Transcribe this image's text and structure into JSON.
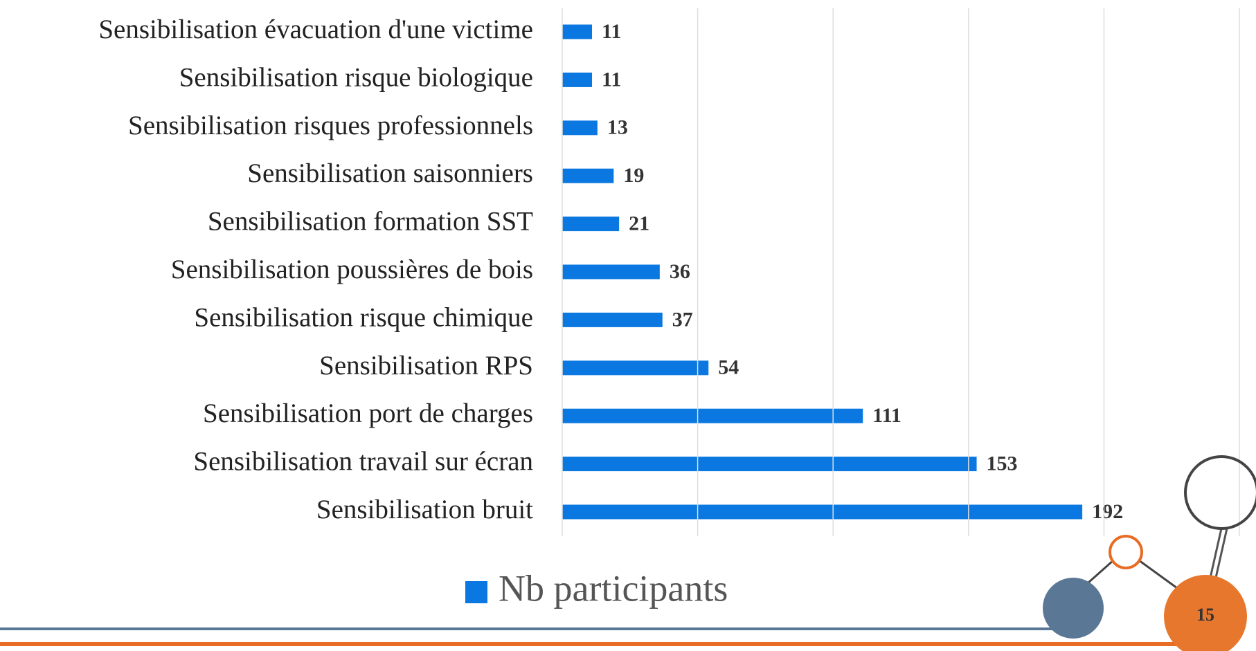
{
  "chart_data": {
    "type": "bar",
    "orientation": "horizontal",
    "categories": [
      "Sensibilisation évacuation d'une victime",
      "Sensibilisation risque biologique",
      "Sensibilisation risques professionnels",
      "Sensibilisation saisonniers",
      "Sensibilisation formation SST",
      "Sensibilisation poussières de bois",
      "Sensibilisation risque chimique ",
      "Sensibilisation RPS",
      "Sensibilisation port de charges",
      "Sensibilisation travail sur écran",
      "Sensibilisation bruit"
    ],
    "series": [
      {
        "name": "Nb participants",
        "color": "#0a78e0",
        "values": [
          11,
          11,
          13,
          19,
          21,
          36,
          37,
          54,
          111,
          153,
          192
        ]
      }
    ],
    "xlim": [
      0,
      250
    ],
    "xticks": [
      0,
      50,
      100,
      150,
      200,
      250
    ],
    "grid": true,
    "legend": "bottom"
  },
  "slide_number": "15"
}
